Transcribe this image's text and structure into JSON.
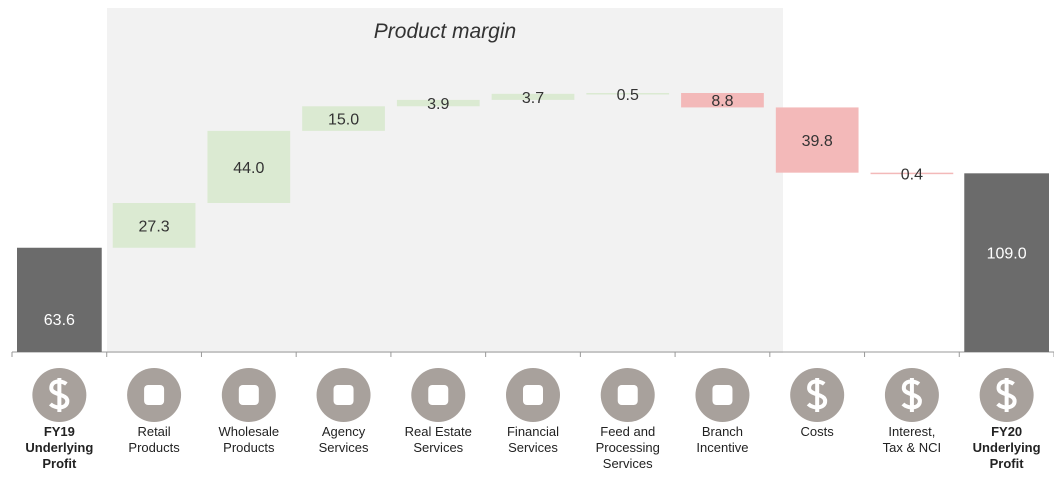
{
  "chart_data": {
    "type": "waterfall",
    "annotation": "Product margin",
    "categories": [
      "FY19\nUnderlying\nProfit",
      "Retail\nProducts",
      "Wholesale\nProducts",
      "Agency\nServices",
      "Real Estate\nServices",
      "Financial\nServices",
      "Feed and\nProcessing\nServices",
      "Branch\nIncentive",
      "Costs",
      "Interest,\nTax & NCI",
      "FY20\nUnderlying\nProfit"
    ],
    "measure": [
      "absolute",
      "relative",
      "relative",
      "relative",
      "relative",
      "relative",
      "relative",
      "relative",
      "relative",
      "relative",
      "total"
    ],
    "values": [
      63.6,
      27.3,
      44.0,
      15.0,
      3.9,
      3.7,
      0.5,
      -8.8,
      -39.8,
      -0.4,
      109.0
    ],
    "value_labels": [
      "63.6",
      "27.3",
      "44.0",
      "15.0",
      "3.9",
      "3.7",
      "0.5",
      "8.8",
      "39.8",
      "0.4",
      "109.0"
    ],
    "colors": {
      "total": "#6b6b6b",
      "increase": "#dbead2",
      "decrease": "#f3b9b9"
    }
  }
}
